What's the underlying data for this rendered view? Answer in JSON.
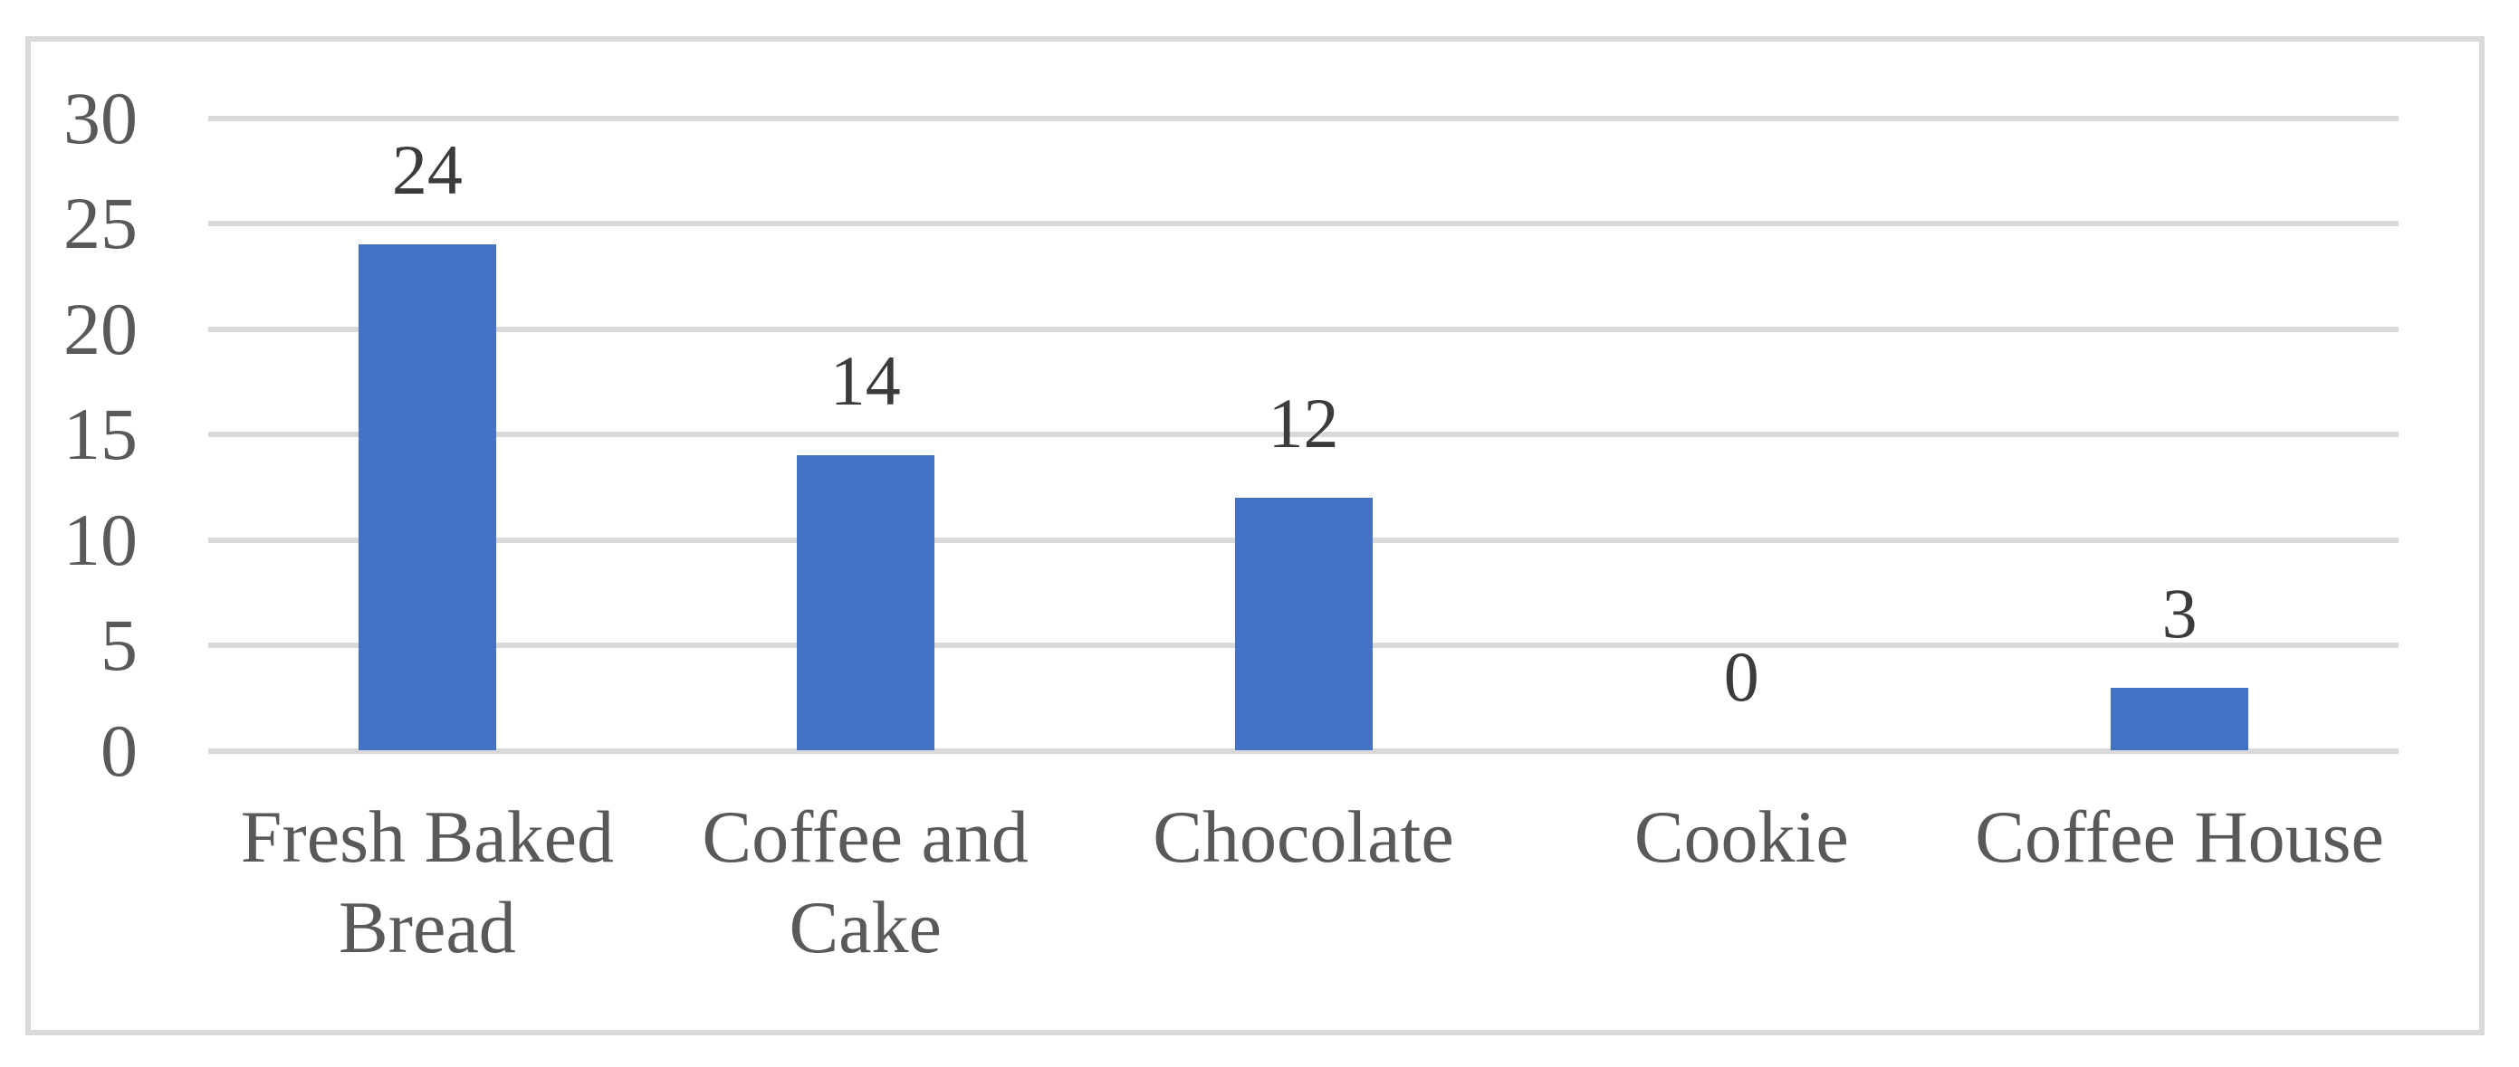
{
  "chart_data": {
    "type": "bar",
    "title": "",
    "xlabel": "",
    "ylabel": "",
    "categories": [
      "Fresh Baked\nBread",
      "Coffee and\nCake",
      "Chocolate",
      "Cookie",
      "Coffee House"
    ],
    "values": [
      24,
      14,
      12,
      0,
      3
    ],
    "data_labels": [
      "24",
      "14",
      "12",
      "0",
      "3"
    ],
    "ylim": [
      0,
      30
    ],
    "ytick_interval": 5,
    "ytick_labels": [
      "0",
      "5",
      "10",
      "15",
      "20",
      "25",
      "30"
    ],
    "grid": true,
    "legend": false,
    "colors": {
      "bar": "#4472C4",
      "gridline": "#D9D9D9",
      "frame_border": "#D9D9D9",
      "axis_tick_text": "#595959",
      "category_text": "#595959",
      "value_label_text": "#3B3B3B",
      "background": "#FFFFFF"
    }
  }
}
